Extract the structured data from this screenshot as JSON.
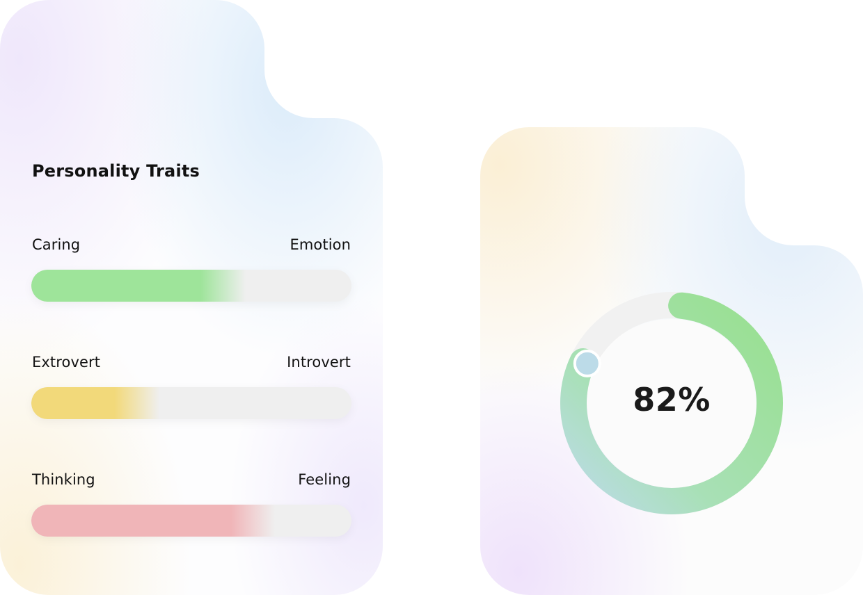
{
  "traits_card": {
    "title": "Personality Traits",
    "traits": [
      {
        "left_label": "Caring",
        "right_label": "Emotion",
        "fill_fraction": 0.53,
        "color": "#9ee49a"
      },
      {
        "left_label": "Extrovert",
        "right_label": "Introvert",
        "fill_fraction": 0.26,
        "color": "#f2d97a"
      },
      {
        "left_label": "Thinking",
        "right_label": "Feeling",
        "fill_fraction": 0.62,
        "color": "#f0b5b8"
      }
    ]
  },
  "score_card": {
    "percent_label": "82%",
    "percent_value": 0.82,
    "ring_start_color": "#bcdbe8",
    "ring_end_color": "#98e08f",
    "track_color": "#f1f1f1"
  }
}
